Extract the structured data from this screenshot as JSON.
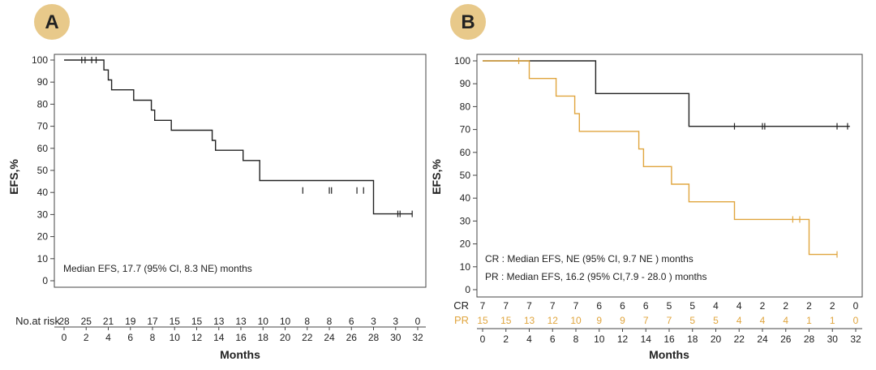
{
  "panels": [
    {
      "badge": "A",
      "ylabel": "EFS,%",
      "xlabel": "Months",
      "risk_label": "No.at risk",
      "annotations": [
        "Median EFS, 17.7 (95% CI, 8.3 NE) months"
      ]
    },
    {
      "badge": "B",
      "ylabel": "EFS,%",
      "xlabel": "Months",
      "annotations": [
        "CR : Median EFS, NE (95% CI, 9.7 NE ) months",
        "PR : Median EFS, 16.2 (95% CI,7.9 - 28.0 ) months"
      ]
    }
  ],
  "colors": {
    "badge_fill": "#e8c98a",
    "curve_dark": "#222222",
    "curve_orange": "#e0a53e",
    "axis": "#444444"
  },
  "chart_data": [
    {
      "type": "line",
      "step": true,
      "title": "",
      "xlabel": "Months",
      "ylabel": "EFS,%",
      "xlim": [
        0,
        32
      ],
      "ylim": [
        0,
        100
      ],
      "xticks": [
        0,
        2,
        4,
        6,
        8,
        10,
        12,
        14,
        16,
        18,
        20,
        22,
        24,
        26,
        28,
        30,
        32
      ],
      "yticks": [
        0,
        10,
        20,
        30,
        40,
        50,
        60,
        70,
        80,
        90,
        100
      ],
      "grid": false,
      "series": [
        {
          "color": "#222222",
          "x": [
            0,
            3.6,
            3.6,
            4.0,
            4.0,
            4.3,
            4.3,
            6.3,
            6.3,
            7.9,
            7.9,
            8.2,
            8.2,
            9.7,
            9.7,
            13.4,
            13.4,
            13.7,
            13.7,
            16.2,
            16.2,
            17.7,
            17.7,
            28.0,
            28.0,
            31.5
          ],
          "y": [
            100,
            100,
            95.5,
            95.5,
            91,
            91,
            86.5,
            86.5,
            81.8,
            81.8,
            77.3,
            77.3,
            72.7,
            72.7,
            68.2,
            68.2,
            63.6,
            63.6,
            59.1,
            59.1,
            54.5,
            54.5,
            45.4,
            45.4,
            30.3,
            30.3
          ],
          "censor_x": [
            1.6,
            1.9,
            2.5,
            2.9,
            21.6,
            24.0,
            24.2,
            26.5,
            27.1,
            30.2,
            30.4,
            31.5
          ],
          "censor_y": [
            100,
            100,
            100,
            100,
            40.9,
            40.9,
            40.9,
            40.9,
            40.9,
            30.3,
            30.3,
            30.3
          ]
        }
      ],
      "at_risk": {
        "x": [
          0,
          2,
          4,
          6,
          8,
          10,
          12,
          14,
          16,
          18,
          20,
          22,
          24,
          26,
          28,
          30,
          32
        ],
        "rows": [
          {
            "label": "No.at risk",
            "values": [
              "28",
              "25",
              "21",
              "19",
              "17",
              "15",
              "15",
              "13",
              "13",
              "10",
              "10",
              "8",
              "8",
              "6",
              "3",
              "3",
              "0"
            ]
          }
        ]
      }
    },
    {
      "type": "line",
      "step": true,
      "title": "",
      "xlabel": "Months",
      "ylabel": "EFS,%",
      "xlim": [
        0,
        32
      ],
      "ylim": [
        0,
        100
      ],
      "xticks": [
        0,
        2,
        4,
        6,
        8,
        10,
        12,
        14,
        16,
        18,
        20,
        22,
        24,
        26,
        28,
        30,
        32
      ],
      "yticks": [
        0,
        10,
        20,
        30,
        40,
        50,
        60,
        70,
        80,
        90,
        100
      ],
      "grid": false,
      "legend": "none",
      "series": [
        {
          "name": "CR",
          "color": "#222222",
          "x": [
            0,
            9.7,
            9.7,
            17.7,
            17.7,
            31.5
          ],
          "y": [
            100,
            100,
            85.7,
            85.7,
            71.4,
            71.4
          ],
          "censor_x": [
            21.6,
            24.0,
            24.2,
            30.4,
            31.3
          ],
          "censor_y": [
            71.4,
            71.4,
            71.4,
            71.4,
            71.4
          ]
        },
        {
          "name": "PR",
          "color": "#e0a53e",
          "x": [
            0,
            4.0,
            4.0,
            6.3,
            6.3,
            7.9,
            7.9,
            8.3,
            8.3,
            13.4,
            13.4,
            13.8,
            13.8,
            16.2,
            16.2,
            17.7,
            17.7,
            21.6,
            21.6,
            28.0,
            28.0,
            30.4
          ],
          "y": [
            100,
            100,
            92.3,
            92.3,
            84.6,
            84.6,
            76.9,
            76.9,
            69.2,
            69.2,
            61.5,
            61.5,
            53.8,
            53.8,
            46.1,
            46.1,
            38.4,
            38.4,
            30.7,
            30.7,
            15.4,
            15.4
          ],
          "censor_x": [
            3.1,
            26.6,
            27.2,
            30.4
          ],
          "censor_y": [
            100,
            30.7,
            30.7,
            15.4
          ]
        }
      ],
      "at_risk": {
        "x": [
          0,
          2,
          4,
          6,
          8,
          10,
          12,
          14,
          16,
          18,
          20,
          22,
          24,
          26,
          28,
          30,
          32
        ],
        "rows": [
          {
            "label": "CR",
            "color": "#222222",
            "values": [
              "7",
              "7",
              "7",
              "7",
              "7",
              "6",
              "6",
              "6",
              "5",
              "5",
              "4",
              "4",
              "2",
              "2",
              "2",
              "2",
              "0"
            ]
          },
          {
            "label": "PR",
            "color": "#e0a53e",
            "values": [
              "15",
              "15",
              "13",
              "12",
              "10",
              "9",
              "9",
              "7",
              "7",
              "5",
              "5",
              "4",
              "4",
              "4",
              "1",
              "1",
              "0"
            ]
          }
        ]
      }
    }
  ]
}
